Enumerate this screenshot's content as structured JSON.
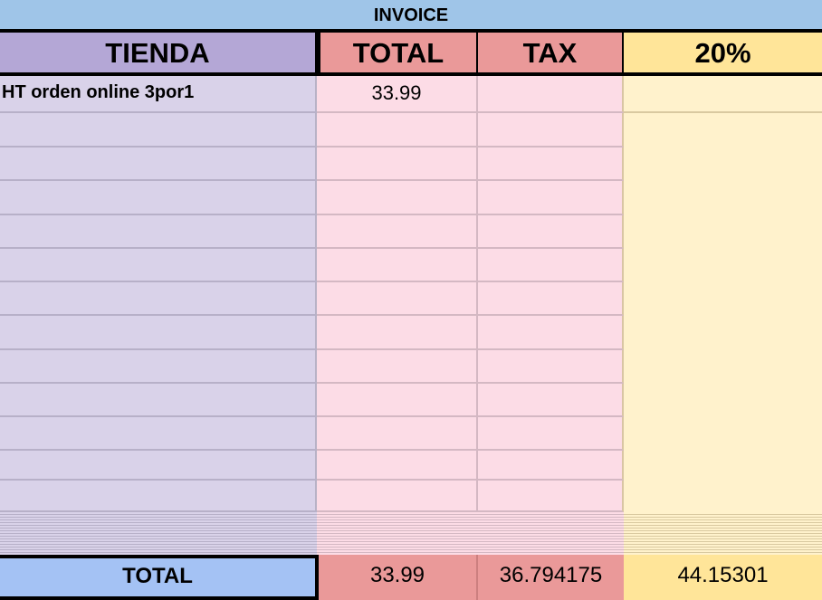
{
  "title": "INVOICE",
  "headers": {
    "store": "TIENDA",
    "total": "TOTAL",
    "tax": "TAX",
    "rate": "20%"
  },
  "rows": [
    {
      "store": "HT orden online 3por1",
      "total": "33.99",
      "tax": "",
      "rate": ""
    },
    {
      "store": "",
      "total": "",
      "tax": "",
      "rate": ""
    },
    {
      "store": "",
      "total": "",
      "tax": "",
      "rate": ""
    },
    {
      "store": "",
      "total": "",
      "tax": "",
      "rate": ""
    },
    {
      "store": "",
      "total": "",
      "tax": "",
      "rate": ""
    },
    {
      "store": "",
      "total": "",
      "tax": "",
      "rate": ""
    },
    {
      "store": "",
      "total": "",
      "tax": "",
      "rate": ""
    },
    {
      "store": "",
      "total": "",
      "tax": "",
      "rate": ""
    },
    {
      "store": "",
      "total": "",
      "tax": "",
      "rate": ""
    },
    {
      "store": "",
      "total": "",
      "tax": "",
      "rate": ""
    },
    {
      "store": "",
      "total": "",
      "tax": "",
      "rate": ""
    },
    {
      "store": "",
      "total": "",
      "tax": "",
      "rate": ""
    },
    {
      "store": "",
      "total": "",
      "tax": "",
      "rate": ""
    }
  ],
  "totals": {
    "label": "TOTAL",
    "total": "33.99",
    "tax": "36.794175",
    "rate": "44.15301"
  },
  "colors": {
    "title": "#9fc5e8",
    "store_header": "#b4a7d6",
    "total_header": "#ea9999",
    "rate_header": "#ffe599",
    "total_label": "#a4c2f4"
  }
}
